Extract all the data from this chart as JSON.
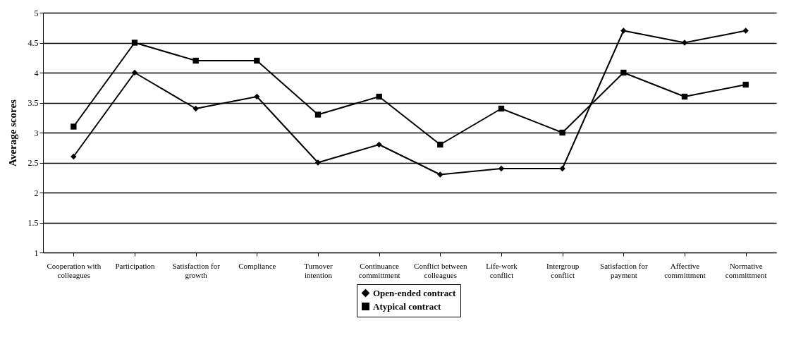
{
  "chart_data": {
    "type": "line",
    "ylabel": "Average scores",
    "categories": [
      "Cooperation with colleagues",
      "Participation",
      "Satisfaction for growth",
      "Compliance",
      "Turnover intention",
      "Continuance committment",
      "Conflict between colleagues",
      "Life-work conflict",
      "Intergroup conflict",
      "Satisfaction for payment",
      "Affective committment",
      "Normative committment"
    ],
    "series": [
      {
        "name": "Open-ended contract",
        "color": "#000000",
        "marker": "diamond",
        "values": [
          2.6,
          4.0,
          3.4,
          3.6,
          2.5,
          2.8,
          2.3,
          2.4,
          2.4,
          4.7,
          4.5,
          4.7
        ]
      },
      {
        "name": "Atypical contract",
        "color": "#000000",
        "marker": "square",
        "values": [
          3.1,
          4.5,
          4.2,
          4.2,
          3.3,
          3.6,
          2.8,
          3.4,
          3.0,
          4.0,
          3.6,
          3.8
        ]
      }
    ],
    "ylim": [
      1,
      5
    ],
    "yticks": [
      1,
      1.5,
      2,
      2.5,
      3,
      3.5,
      4,
      4.5,
      5
    ],
    "grid": "y",
    "legend": "bottom",
    "line_style": "solid"
  }
}
